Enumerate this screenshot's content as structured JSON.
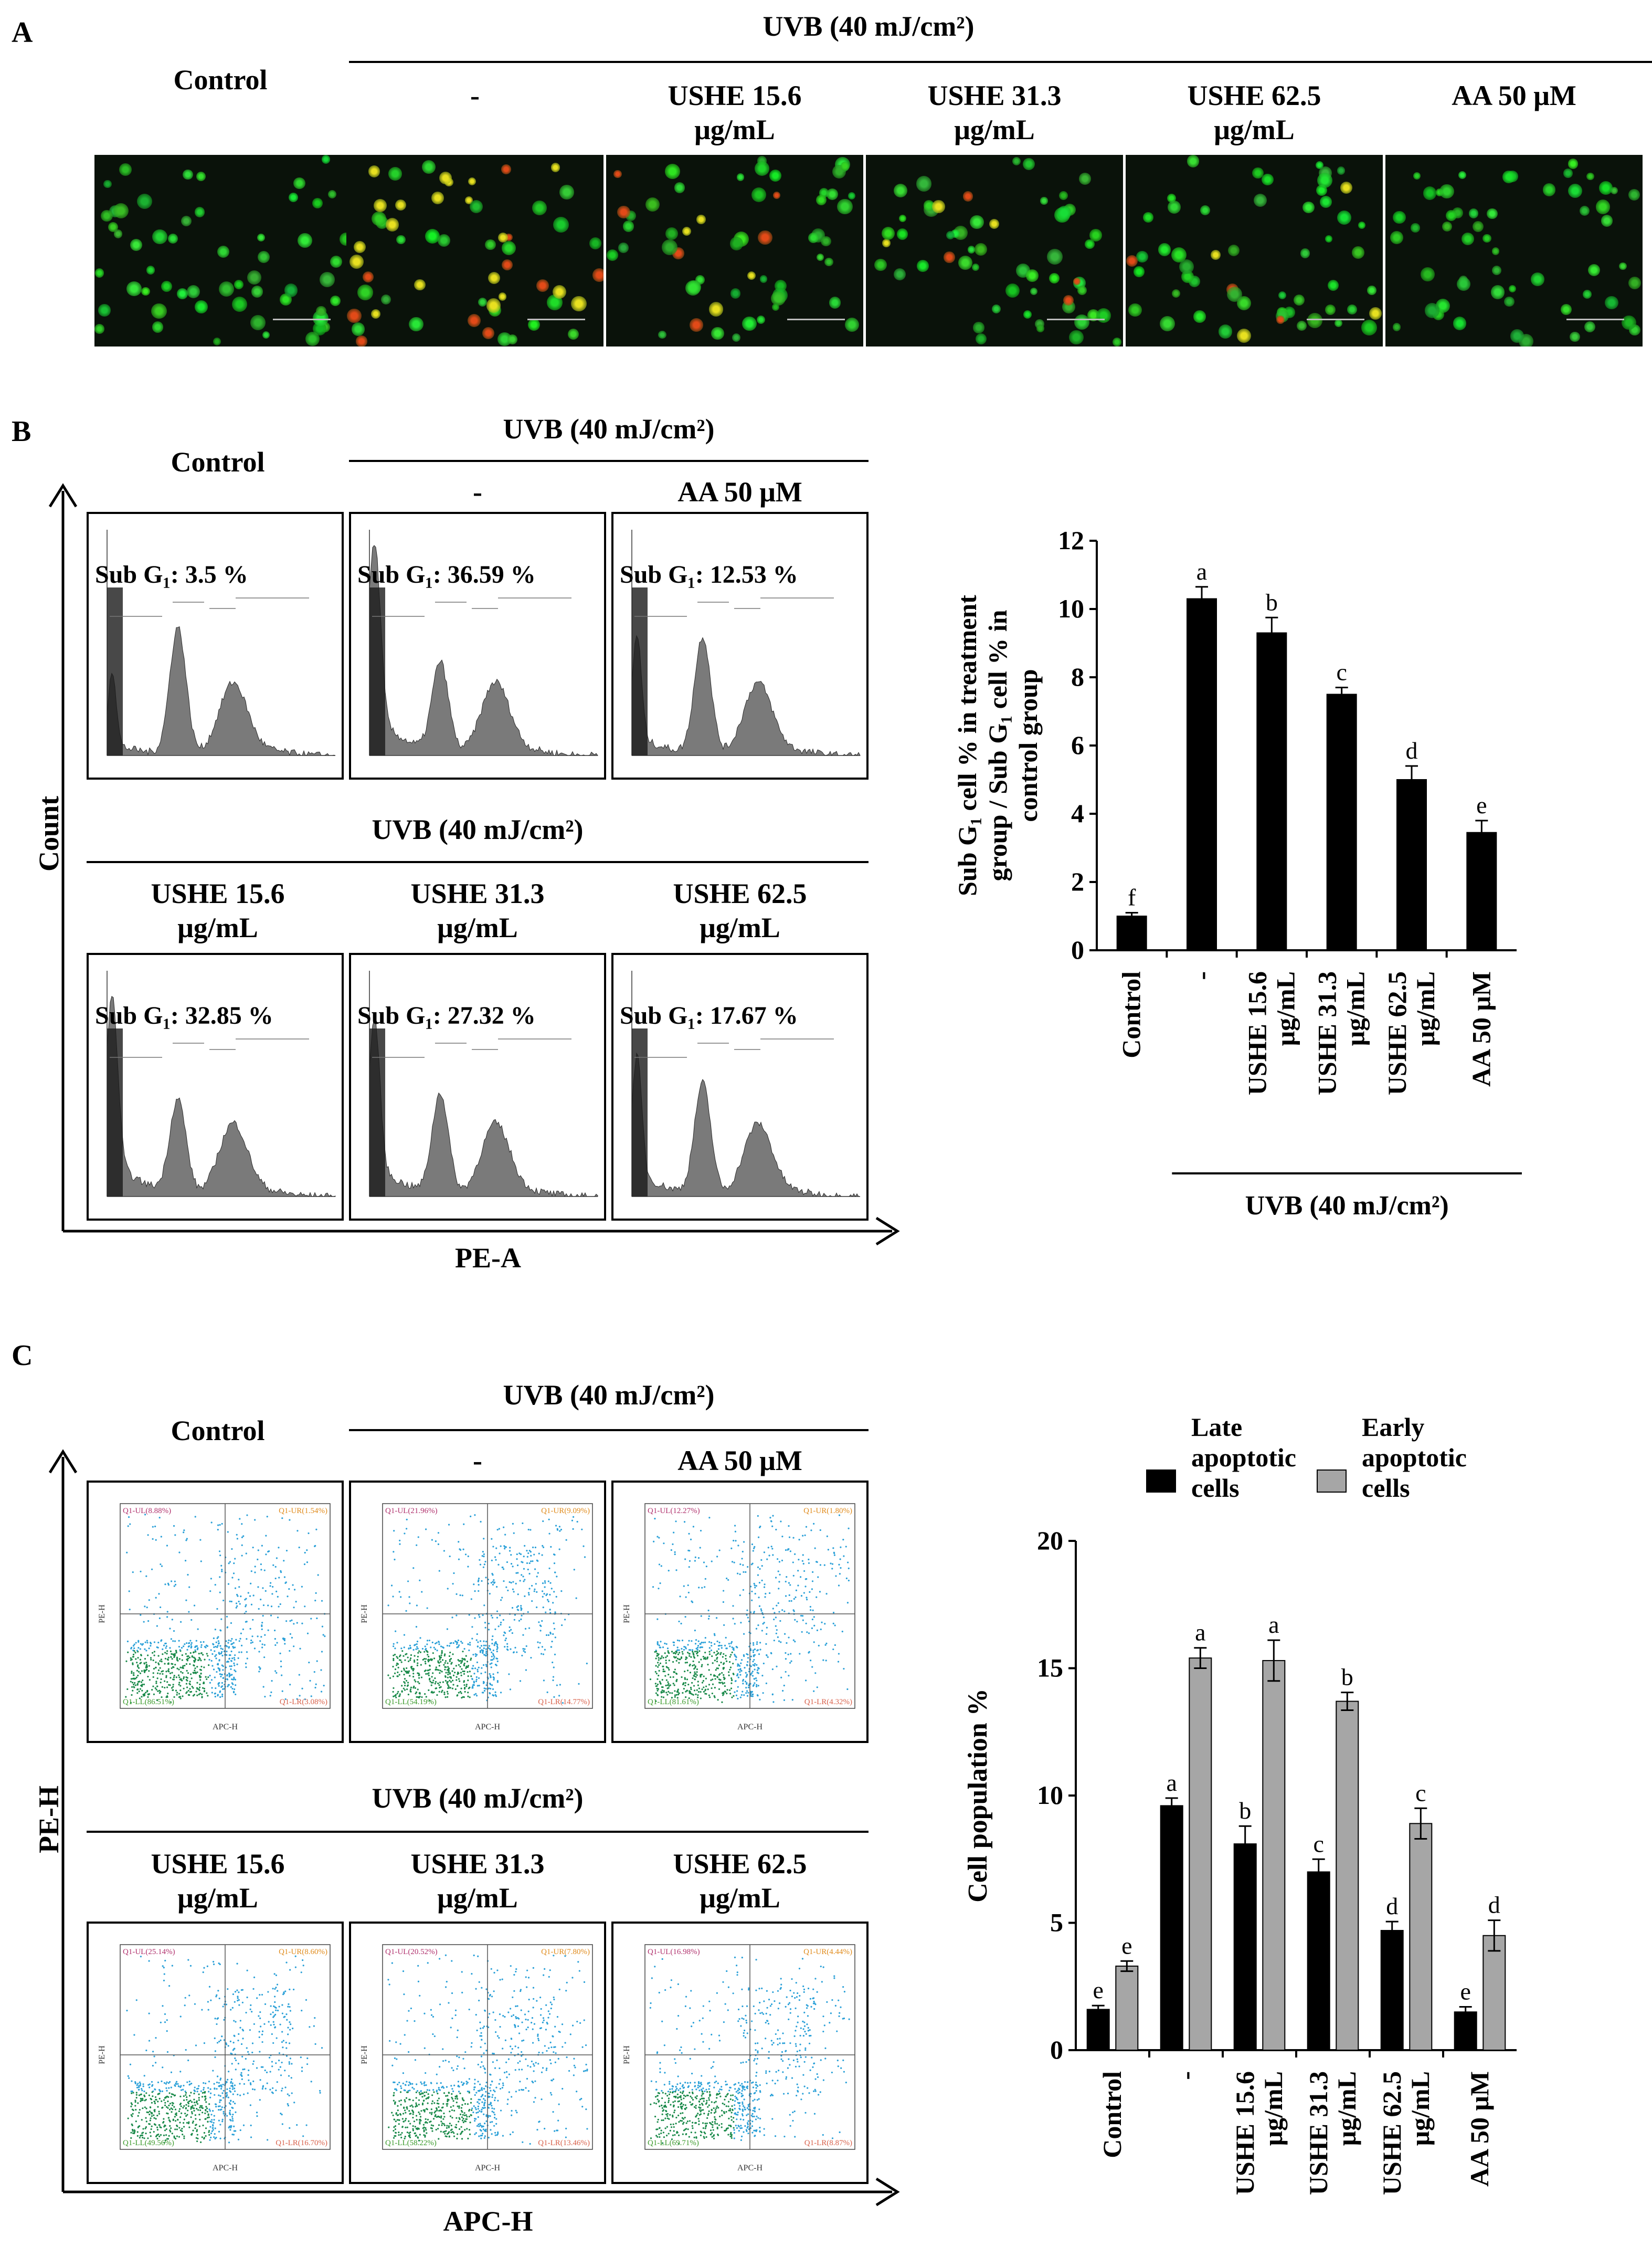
{
  "panels": {
    "A": {
      "letter": "A",
      "uvb_header": "UVB (40 mJ/cm²)",
      "groups": [
        "Control",
        "-",
        "USHE 15.6\nμg/mL",
        "USHE 31.3\nμg/mL",
        "USHE 62.5\nμg/mL",
        "AA 50 μM"
      ]
    },
    "B": {
      "letter": "B",
      "uvb_header": "UVB (40 mJ/cm²)",
      "control_label": "Control",
      "top_groups": [
        "-",
        "AA 50 μM"
      ],
      "uvb_header_2": "UVB (40 mJ/cm²)",
      "bottom_groups": [
        "USHE 15.6\nμg/mL",
        "USHE 31.3\nμg/mL",
        "USHE 62.5\nμg/mL"
      ],
      "y_axis": "Count",
      "x_axis": "PE-A",
      "subg_labels": [
        "Sub G₁: 3.5 %",
        "Sub G₁: 36.59 %",
        "Sub G₁: 12.53 %",
        "Sub G₁: 32.85 %",
        "Sub G₁: 27.32 %",
        "Sub G₁: 17.67 %"
      ],
      "subg_values": [
        3.5,
        36.59,
        12.53,
        32.85,
        27.32,
        17.67
      ]
    },
    "C": {
      "letter": "C",
      "uvb_header": "UVB (40 mJ/cm²)",
      "control_label": "Control",
      "top_groups": [
        "-",
        "AA 50 μM"
      ],
      "uvb_header_2": "UVB (40 mJ/cm²)",
      "bottom_groups": [
        "USHE 15.6\nμg/mL",
        "USHE 31.3\nμg/mL",
        "USHE 62.5\nμg/mL"
      ],
      "y_axis": "PE-H",
      "x_axis": "APC-H",
      "quadrants": [
        {
          "ul": "Q1-UL(8.88%)",
          "ur": "Q1-UR(1.54%)",
          "ll": "Q1-LL(86.51%)",
          "lr": "Q1-LR(3.08%)"
        },
        {
          "ul": "Q1-UL(21.96%)",
          "ur": "Q1-UR(9.09%)",
          "ll": "Q1-LL(54.19%)",
          "lr": "Q1-LR(14.77%)"
        },
        {
          "ul": "Q1-UL(12.27%)",
          "ur": "Q1-UR(1.80%)",
          "ll": "Q1-LL(81.61%)",
          "lr": "Q1-LR(4.32%)"
        },
        {
          "ul": "Q1-UL(25.14%)",
          "ur": "Q1-UR(8.60%)",
          "ll": "Q1-LL(49.56%)",
          "lr": "Q1-LR(16.70%)"
        },
        {
          "ul": "Q1-UL(20.52%)",
          "ur": "Q1-UR(7.80%)",
          "ll": "Q1-LL(58.22%)",
          "lr": "Q1-LR(13.46%)"
        },
        {
          "ul": "Q1-UL(16.98%)",
          "ur": "Q1-UR(4.44%)",
          "ll": "Q1-LL(69.71%)",
          "lr": "Q1-LR(8.87%)"
        }
      ]
    }
  },
  "chart_data": [
    {
      "type": "bar",
      "id": "B-bar",
      "categories": [
        "Control",
        "-",
        "USHE 15.6\nμg/mL",
        "USHE 31.3\nμg/mL",
        "USHE 62.5\nμg/mL",
        "AA 50 μM"
      ],
      "values": [
        1.0,
        10.3,
        9.3,
        7.5,
        5.0,
        3.45
      ],
      "errors": [
        0.1,
        0.35,
        0.45,
        0.2,
        0.4,
        0.35
      ],
      "letters": [
        "f",
        "a",
        "b",
        "c",
        "d",
        "e"
      ],
      "ylabel": "Sub G₁ cell % in treatment group / Sub G₁ cell % in control group",
      "ylim": [
        0,
        12
      ],
      "yticks": [
        0,
        2,
        4,
        6,
        8,
        10,
        12
      ],
      "group_label": "UVB (40 mJ/cm²)",
      "color": "#000000"
    },
    {
      "type": "bar",
      "id": "C-bar",
      "categories": [
        "Control",
        "-",
        "USHE 15.6\nμg/mL",
        "USHE 31.3\nμg/mL",
        "USHE 62.5\nμg/mL",
        "AA 50 μM"
      ],
      "series": [
        {
          "name": "Late apoptotic cells",
          "values": [
            1.6,
            9.6,
            8.1,
            7.0,
            4.7,
            1.5
          ],
          "errors": [
            0.15,
            0.3,
            0.7,
            0.5,
            0.35,
            0.2
          ],
          "letters": [
            "e",
            "a",
            "b",
            "c",
            "d",
            "e"
          ],
          "color": "#000000"
        },
        {
          "name": "Early apoptotic cells",
          "values": [
            3.3,
            15.4,
            15.3,
            13.7,
            8.9,
            4.5
          ],
          "errors": [
            0.2,
            0.4,
            0.8,
            0.35,
            0.6,
            0.6
          ],
          "letters": [
            "e",
            "a",
            "a",
            "b",
            "c",
            "d"
          ],
          "color": "#a6a6a6"
        }
      ],
      "legend_labels": [
        "Late\napoptotic\ncells",
        "Early\napoptotic\ncells"
      ],
      "ylabel": "Cell population %",
      "ylim": [
        0,
        20
      ],
      "yticks": [
        0,
        5,
        10,
        15,
        20
      ],
      "group_label": "UVB (40 mJ/cm²)"
    }
  ]
}
